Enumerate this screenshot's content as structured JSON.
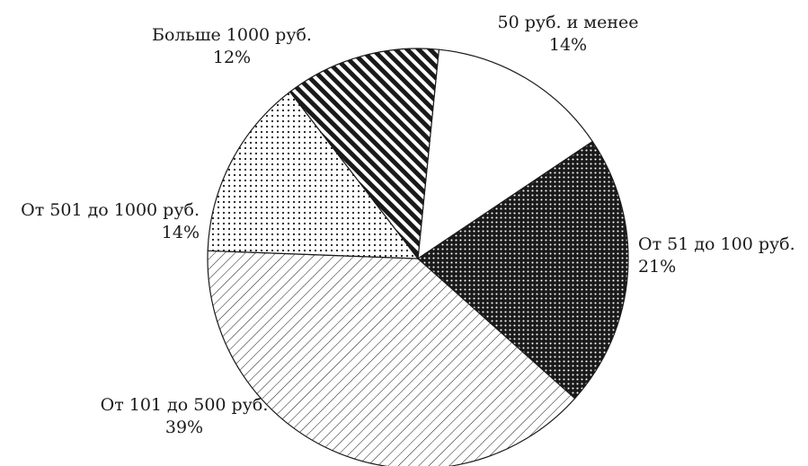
{
  "chart_data": {
    "type": "pie",
    "title": "",
    "slices": [
      {
        "label": "50 руб. и менее",
        "value": 14,
        "value_label": "14%",
        "pattern": "none"
      },
      {
        "label": "От 51 до 100 руб.",
        "value": 21,
        "value_label": "21%",
        "pattern": "dense-dots"
      },
      {
        "label": "От 101 до 500 руб.",
        "value": 39,
        "value_label": "39%",
        "pattern": "thin-diagonal-hatch"
      },
      {
        "label": "От 501 до 1000 руб.",
        "value": 14,
        "value_label": "14%",
        "pattern": "sparse-dots"
      },
      {
        "label": "Больше 1000 руб.",
        "value": 12,
        "value_label": "12%",
        "pattern": "bold-diagonal-stripes"
      }
    ],
    "start": "top, clockwise",
    "legend": "none"
  },
  "colors": {
    "ink": "#1a1a1a",
    "background": "#ffffff"
  }
}
